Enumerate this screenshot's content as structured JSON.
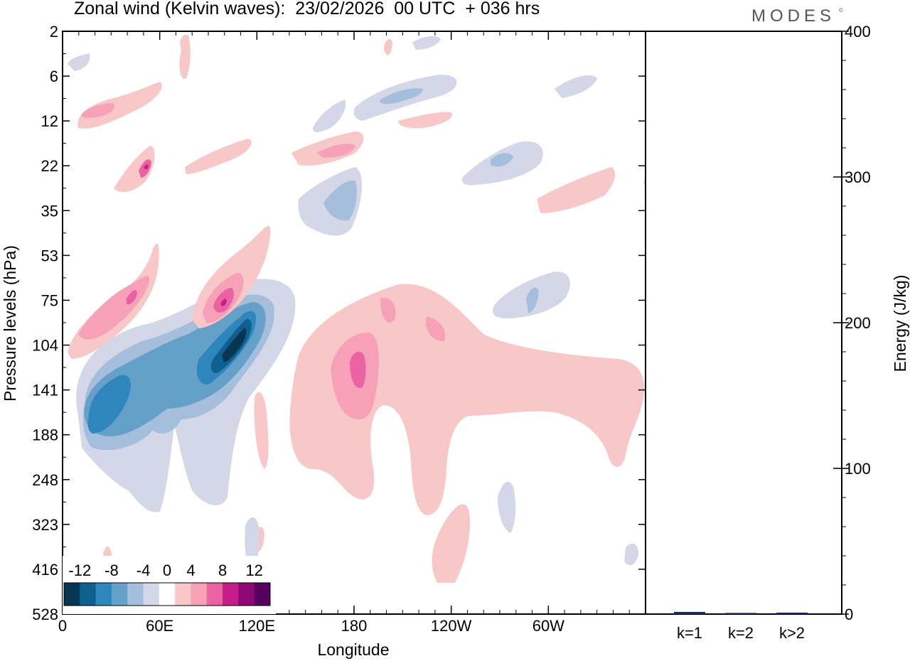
{
  "header": {
    "title": "Zonal wind (Kelvin waves):  23/02/2026  00 UTC  + 036 hrs",
    "brand": "MODES",
    "brand_mark": "©"
  },
  "chart_data": [
    {
      "type": "heatmap",
      "title": "Zonal wind (Kelvin waves):  23/02/2026  00 UTC  + 036 hrs",
      "xlabel": "Longitude",
      "ylabel": "Pressure levels (hPa)",
      "x_ticks": [
        "0",
        "60E",
        "120E",
        "180",
        "120W",
        "60W"
      ],
      "x_tick_degrees": [
        0,
        60,
        120,
        180,
        240,
        300
      ],
      "xlim": [
        0,
        360
      ],
      "y_ticks": [
        "2",
        "6",
        "12",
        "22",
        "35",
        "53",
        "75",
        "104",
        "141",
        "188",
        "248",
        "323",
        "416",
        "528"
      ],
      "y_scale": "model levels, top to bottom",
      "colorbar": {
        "labels": [
          "-12",
          "-8",
          "-4",
          "0",
          "4",
          "8",
          "12"
        ],
        "levels": [
          -14,
          -12,
          -10,
          -8,
          -6,
          -4,
          -2,
          2,
          4,
          6,
          8,
          10,
          12,
          14
        ],
        "colors": [
          "#063652",
          "#0f5f8f",
          "#2e86bd",
          "#65a0c9",
          "#a4bedc",
          "#d3d7e8",
          "#ffffff",
          "#f8c8c8",
          "#f7a1b9",
          "#ea62a2",
          "#c61d8a",
          "#8c0875",
          "#560060"
        ],
        "placement": "bottom-left inset"
      },
      "features": [
        {
          "name": "negative-anomaly-main",
          "longitude_range": [
            10,
            125
          ],
          "pressure_range": [
            60,
            330
          ],
          "min_value": -14
        },
        {
          "name": "positive-anomaly-main",
          "longitude_range": [
            140,
            360
          ],
          "pressure_range": [
            60,
            450
          ],
          "max_value": 8
        },
        {
          "name": "positive-upper-tilt",
          "longitude_range": [
            5,
            60
          ],
          "pressure_range": [
            15,
            140
          ],
          "max_value": 10
        },
        {
          "name": "positive-core-75hPa",
          "longitude_range": [
            85,
            110
          ],
          "pressure_range": [
            55,
            100
          ],
          "max_value": 11
        }
      ]
    },
    {
      "type": "bar",
      "title": "",
      "ylabel": "Energy (J/kg)",
      "categories": [
        "k=1",
        "k=2",
        "k>2"
      ],
      "values": [
        1.5,
        0.8,
        1.0
      ],
      "ylim": [
        0,
        400
      ],
      "y_ticks": [
        0,
        100,
        200,
        300,
        400
      ],
      "bar_color": "#1a237e"
    }
  ]
}
